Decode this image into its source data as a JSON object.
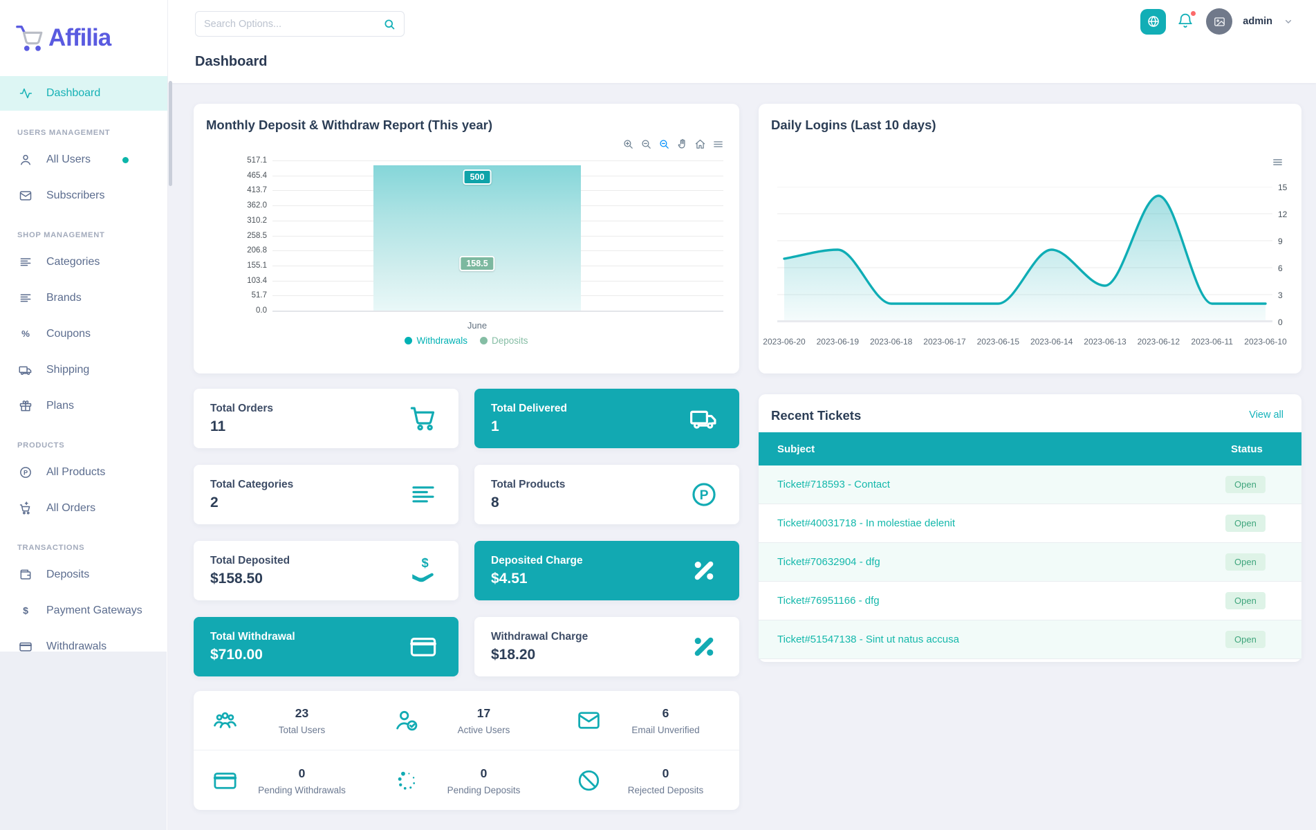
{
  "brand": {
    "name": "Affilia"
  },
  "header": {
    "search_placeholder": "Search Options...",
    "page_title": "Dashboard",
    "user": "admin",
    "icons": [
      "globe-icon",
      "bell-icon",
      "avatar-image-icon",
      "chevron-down-icon"
    ],
    "notification_dot_color": "#fc6a6a"
  },
  "colors": {
    "teal": "#12abb3",
    "indigo": "#5a5be0",
    "withdrawals_series": "#00b1b4",
    "deposits_series": "#85bda4",
    "badge_green_bg": "#def3e7",
    "badge_green_text": "#3fa57c"
  },
  "sidebar": {
    "sections": [
      {
        "header": null,
        "items": [
          {
            "label": "Dashboard",
            "icon": "activity",
            "active": true
          }
        ]
      },
      {
        "header": "USERS MANAGEMENT",
        "items": [
          {
            "label": "All Users",
            "icon": "user",
            "dot": true
          },
          {
            "label": "Subscribers",
            "icon": "mail"
          }
        ]
      },
      {
        "header": "SHOP MANAGEMENT",
        "items": [
          {
            "label": "Categories",
            "icon": "align"
          },
          {
            "label": "Brands",
            "icon": "align"
          },
          {
            "label": "Coupons",
            "icon": "percent"
          },
          {
            "label": "Shipping",
            "icon": "truck"
          },
          {
            "label": "Plans",
            "icon": "gift"
          }
        ]
      },
      {
        "header": "PRODUCTS",
        "items": [
          {
            "label": "All Products",
            "icon": "p-circle"
          },
          {
            "label": "All Orders",
            "icon": "cart-plus"
          }
        ]
      },
      {
        "header": "TRANSACTIONS",
        "items": [
          {
            "label": "Deposits",
            "icon": "wallet"
          },
          {
            "label": "Payment Gateways",
            "icon": "dollar"
          },
          {
            "label": "Withdrawals",
            "icon": "credit-card"
          }
        ]
      }
    ]
  },
  "chart_data": [
    {
      "name": "monthly",
      "type": "bar",
      "title": "Monthly Deposit & Withdraw Report (This year)",
      "categories": [
        "June"
      ],
      "series": [
        {
          "name": "Withdrawals",
          "value": 500,
          "label": "500",
          "color": "#00b1b4",
          "badge_bg": "#0fa3a9"
        },
        {
          "name": "Deposits",
          "value": 158.5,
          "label": "158.5",
          "color": "#85bda4",
          "badge_bg": "#7cb89f"
        }
      ],
      "y_ticks": [
        "517.1",
        "465.4",
        "413.7",
        "362.0",
        "310.2",
        "258.5",
        "206.8",
        "155.1",
        "103.4",
        "51.7",
        "0.0"
      ],
      "y_max": 517.1,
      "grid": true,
      "legend_position": "bottom",
      "toolbar": [
        "zoom-in",
        "zoom-out",
        "selection-zoom",
        "pan",
        "home",
        "menu"
      ]
    },
    {
      "name": "daily",
      "type": "area",
      "title": "Daily Logins (Last 10 days)",
      "x": [
        "2023-06-20",
        "2023-06-19",
        "2023-06-18",
        "2023-06-17",
        "2023-06-15",
        "2023-06-14",
        "2023-06-13",
        "2023-06-12",
        "2023-06-11",
        "2023-06-10"
      ],
      "values": [
        7,
        8,
        2,
        2,
        2,
        8,
        4,
        14,
        2,
        2
      ],
      "y_ticks": [
        15,
        12,
        9,
        6,
        3,
        0
      ],
      "y_max": 15,
      "grid": true,
      "axis_side": "right",
      "line_color": "#0fadb5",
      "toolbar": [
        "menu"
      ]
    }
  ],
  "stat_cards": [
    {
      "label": "Total Orders",
      "value": "11",
      "icon": "cart",
      "variant": "light"
    },
    {
      "label": "Total Delivered",
      "value": "1",
      "icon": "truck",
      "variant": "teal"
    },
    {
      "label": "Total Categories",
      "value": "2",
      "icon": "align",
      "variant": "light"
    },
    {
      "label": "Total Products",
      "value": "8",
      "icon": "p-circle",
      "variant": "light"
    },
    {
      "label": "Total Deposited",
      "value": "$158.50",
      "icon": "hand-dollar",
      "variant": "light"
    },
    {
      "label": "Deposited Charge",
      "value": "$4.51",
      "icon": "percent-badge",
      "variant": "teal"
    },
    {
      "label": "Total Withdrawal",
      "value": "$710.00",
      "icon": "credit-card",
      "variant": "teal"
    },
    {
      "label": "Withdrawal Charge",
      "value": "$18.20",
      "icon": "percent-badge",
      "variant": "light"
    }
  ],
  "tickets": {
    "title": "Recent Tickets",
    "view_all": "View all",
    "columns": [
      "Subject",
      "Status"
    ],
    "rows": [
      {
        "subject": "Ticket#718593 - Contact",
        "status": "Open"
      },
      {
        "subject": "Ticket#40031718 - In molestiae delenit",
        "status": "Open"
      },
      {
        "subject": "Ticket#70632904 - dfg",
        "status": "Open"
      },
      {
        "subject": "Ticket#76951166 - dfg",
        "status": "Open"
      },
      {
        "subject": "Ticket#51547138 - Sint ut natus accusa",
        "status": "Open"
      }
    ]
  },
  "summary": {
    "items": [
      {
        "icon": "users-group",
        "value": "23",
        "label": "Total Users"
      },
      {
        "icon": "user-check",
        "value": "17",
        "label": "Active Users"
      },
      {
        "icon": "mail",
        "value": "6",
        "label": "Email Unverified"
      },
      {
        "icon": "credit-card",
        "value": "0",
        "label": "Pending Withdrawals"
      },
      {
        "icon": "loader",
        "value": "0",
        "label": "Pending Deposits"
      },
      {
        "icon": "ban",
        "value": "0",
        "label": "Rejected Deposits"
      }
    ]
  }
}
